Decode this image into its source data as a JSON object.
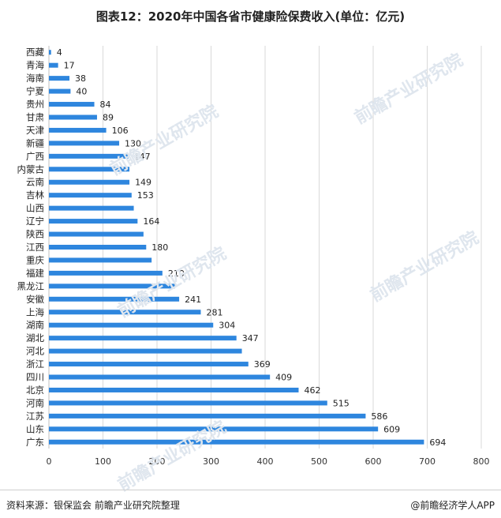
{
  "title": "图表12：2020年中国各省市健康险保费收入(单位：亿元)",
  "footer": {
    "source": "资料来源：银保监会 前瞻产业研究院整理",
    "credit": "@前瞻经济学人APP"
  },
  "watermark": "前瞻产业研究院",
  "colors": {
    "bar": "#2e86de",
    "grid": "#d9d9d9",
    "axis": "#bfbfbf"
  },
  "chart_data": {
    "type": "bar",
    "orientation": "horizontal",
    "title": "图表12：2020年中国各省市健康险保费收入(单位：亿元)",
    "xlabel": "",
    "ylabel": "",
    "xlim": [
      0,
      800
    ],
    "xticks": [
      0,
      100,
      200,
      300,
      400,
      500,
      600,
      700,
      800
    ],
    "grid": true,
    "categories": [
      "西藏",
      "青海",
      "海南",
      "宁夏",
      "贵州",
      "甘肃",
      "天津",
      "新疆",
      "广西",
      "内蒙古",
      "云南",
      "吉林",
      "山西",
      "辽宁",
      "陕西",
      "江西",
      "重庆",
      "福建",
      "黑龙江",
      "安徽",
      "上海",
      "湖南",
      "湖北",
      "河北",
      "浙江",
      "四川",
      "北京",
      "河南",
      "江苏",
      "山东",
      "广东"
    ],
    "values": [
      4,
      17,
      38,
      40,
      84,
      89,
      106,
      130,
      147,
      149,
      149,
      153,
      157,
      164,
      175,
      180,
      190,
      210,
      233,
      241,
      281,
      304,
      347,
      357,
      369,
      409,
      462,
      515,
      586,
      609,
      694
    ],
    "data_labels": [
      "4",
      "17",
      "38",
      "40",
      "84",
      "89",
      "106",
      "130",
      "147",
      "",
      "149",
      "153",
      "",
      "164",
      "",
      "180",
      "",
      "210",
      "",
      "241",
      "281",
      "304",
      "347",
      "",
      "369",
      "409",
      "462",
      "515",
      "586",
      "609",
      "694"
    ]
  }
}
